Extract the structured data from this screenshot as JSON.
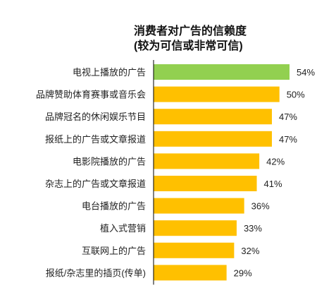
{
  "chart_data": {
    "type": "bar",
    "orientation": "horizontal",
    "title": "消费者对广告的信赖度",
    "subtitle": "(较为可信或非常可信)",
    "categories": [
      "电视上播放的广告",
      "品牌赞助体育赛事或音乐会",
      "品牌冠名的休闲娱乐节目",
      "报纸上的广告或文章报道",
      "电影院播放的广告",
      "杂志上的广告或文章报道",
      "电台播放的广告",
      "植入式营销",
      "互联网上的广告",
      "报纸/杂志里的插页(传单)"
    ],
    "values": [
      54,
      50,
      47,
      47,
      42,
      41,
      36,
      33,
      32,
      29
    ],
    "value_labels": [
      "54%",
      "50%",
      "47%",
      "47%",
      "42%",
      "41%",
      "36%",
      "33%",
      "32%",
      "29%"
    ],
    "xlim": [
      0,
      54
    ],
    "colors": {
      "highlight": "#92d050",
      "default": "#ffc000",
      "axis": "#000000"
    },
    "grid": false,
    "legend": "none"
  }
}
